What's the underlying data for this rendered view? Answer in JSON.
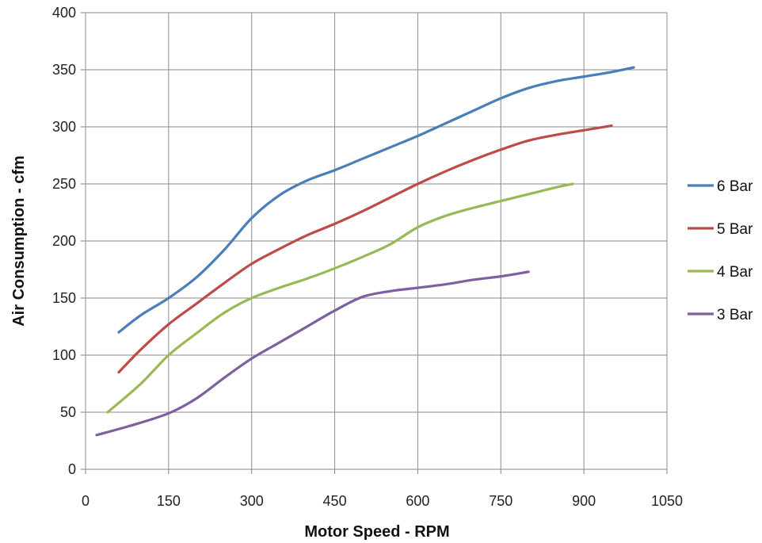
{
  "chart_data": {
    "type": "line",
    "title": "",
    "xlabel": "Motor Speed - RPM",
    "ylabel": "Air Consumption  - cfm",
    "xlim": [
      0,
      1050
    ],
    "ylim": [
      0,
      400
    ],
    "xticks": [
      0,
      150,
      300,
      450,
      600,
      750,
      900,
      1050
    ],
    "yticks": [
      0,
      50,
      100,
      150,
      200,
      250,
      300,
      350,
      400
    ],
    "grid": true,
    "legend_position": "right",
    "series": [
      {
        "name": "6 Bar",
        "color": "#4a7ebb",
        "x": [
          60,
          100,
          150,
          200,
          250,
          300,
          350,
          400,
          450,
          500,
          550,
          600,
          650,
          700,
          750,
          800,
          850,
          900,
          950,
          990
        ],
        "y": [
          120,
          135,
          150,
          168,
          192,
          220,
          240,
          253,
          262,
          272,
          282,
          292,
          303,
          314,
          325,
          334,
          340,
          344,
          348,
          352
        ]
      },
      {
        "name": "5 Bar",
        "color": "#be4b48",
        "x": [
          60,
          100,
          150,
          200,
          250,
          300,
          350,
          400,
          450,
          500,
          550,
          600,
          650,
          700,
          750,
          800,
          850,
          900,
          950
        ],
        "y": [
          85,
          105,
          127,
          145,
          163,
          180,
          193,
          205,
          215,
          226,
          238,
          250,
          261,
          271,
          280,
          288,
          293,
          297,
          301
        ]
      },
      {
        "name": "4 Bar",
        "color": "#98b954",
        "x": [
          40,
          100,
          150,
          200,
          250,
          300,
          350,
          400,
          450,
          500,
          550,
          600,
          650,
          700,
          750,
          800,
          850,
          880
        ],
        "y": [
          50,
          75,
          100,
          119,
          137,
          150,
          159,
          167,
          176,
          186,
          197,
          212,
          222,
          229,
          235,
          241,
          247,
          250
        ]
      },
      {
        "name": "3 Bar",
        "color": "#7d60a0",
        "x": [
          20,
          80,
          150,
          200,
          250,
          300,
          350,
          400,
          450,
          500,
          550,
          600,
          650,
          700,
          750,
          800
        ],
        "y": [
          30,
          38,
          49,
          62,
          80,
          97,
          111,
          125,
          139,
          151,
          156,
          159,
          162,
          166,
          169,
          173
        ]
      }
    ]
  }
}
